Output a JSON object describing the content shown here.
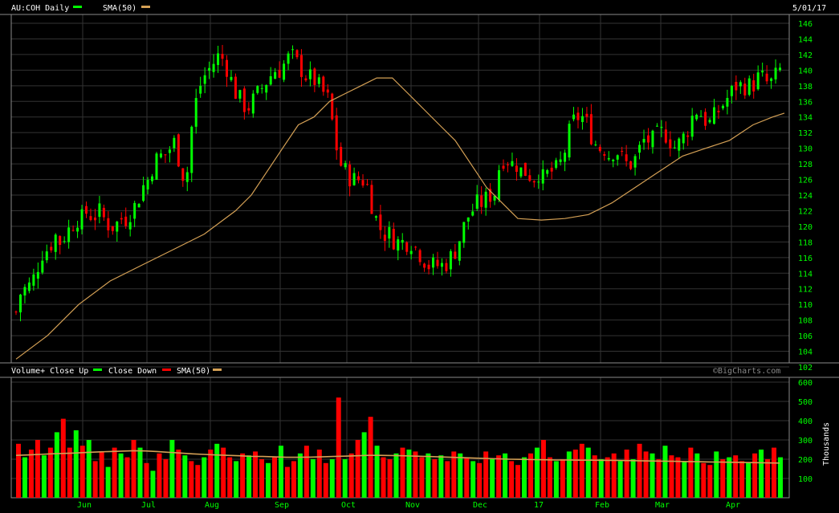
{
  "header": {
    "symbol_label": "AU:COH Daily",
    "sma_label": "SMA(50)",
    "date": "5/01/17"
  },
  "volume_header": {
    "volume_label": "Volume+ Close Up",
    "close_down_label": "Close Down",
    "sma_label": "SMA(50)",
    "watermark": "©BigCharts.com",
    "unit_label": "Thousands"
  },
  "colors": {
    "up": "#00ff00",
    "down": "#ff0000",
    "sma": "#d4a055",
    "grid": "#8a8a8a",
    "text": "#ffffff",
    "background": "#000000"
  },
  "chart_data": [
    {
      "type": "candlestick",
      "title": "AU:COH Daily",
      "x_tick_labels": [
        "Jun",
        "Jul",
        "Aug",
        "Sep",
        "Oct",
        "Nov",
        "Dec",
        "17",
        "Feb",
        "Mar",
        "Apr"
      ],
      "y_tick_labels": [
        102,
        104,
        106,
        108,
        110,
        112,
        114,
        116,
        118,
        120,
        122,
        124,
        126,
        128,
        130,
        132,
        134,
        136,
        138,
        140,
        142,
        144,
        146
      ],
      "ylim": [
        102,
        146
      ],
      "grid": true,
      "legend": "top-left",
      "series": [
        {
          "name": "AU:COH Daily",
          "close_path": [
            [
              0,
              109
            ],
            [
              5,
              112
            ],
            [
              10,
              112
            ],
            [
              15,
              113
            ],
            [
              20,
              115
            ],
            [
              25,
              117
            ],
            [
              30,
              117
            ],
            [
              35,
              119
            ],
            [
              40,
              118
            ],
            [
              45,
              119
            ],
            [
              50,
              120
            ],
            [
              55,
              121
            ],
            [
              60,
              121
            ],
            [
              65,
              122
            ],
            [
              70,
              121
            ],
            [
              75,
              122
            ],
            [
              80,
              121
            ],
            [
              85,
              120
            ],
            [
              90,
              120
            ],
            [
              95,
              121
            ],
            [
              100,
              121
            ],
            [
              105,
              122
            ],
            [
              110,
              123
            ],
            [
              115,
              125
            ],
            [
              120,
              126
            ],
            [
              125,
              128
            ],
            [
              130,
              129
            ],
            [
              135,
              129
            ],
            [
              140,
              130
            ],
            [
              145,
              131
            ],
            [
              150,
              127
            ],
            [
              155,
              126
            ],
            [
              160,
              133
            ],
            [
              165,
              137
            ],
            [
              170,
              139
            ],
            [
              175,
              140
            ],
            [
              180,
              141
            ],
            [
              185,
              142
            ],
            [
              190,
              141
            ],
            [
              195,
              139
            ],
            [
              200,
              137
            ],
            [
              205,
              136
            ],
            [
              210,
              135
            ],
            [
              215,
              136
            ],
            [
              220,
              137
            ],
            [
              225,
              138
            ],
            [
              230,
              139
            ],
            [
              235,
              140
            ],
            [
              240,
              140
            ],
            [
              245,
              141
            ],
            [
              250,
              142
            ],
            [
              255,
              141
            ],
            [
              260,
              140
            ],
            [
              265,
              139
            ],
            [
              270,
              139
            ],
            [
              275,
              138
            ],
            [
              280,
              137
            ],
            [
              285,
              136
            ],
            [
              290,
              131
            ],
            [
              295,
              128
            ],
            [
              300,
              127
            ],
            [
              305,
              126
            ],
            [
              310,
              126
            ],
            [
              315,
              126
            ],
            [
              320,
              125
            ],
            [
              325,
              122
            ],
            [
              330,
              120
            ],
            [
              335,
              119
            ],
            [
              340,
              119
            ],
            [
              345,
              118
            ],
            [
              350,
              118
            ],
            [
              355,
              118
            ],
            [
              360,
              118
            ],
            [
              365,
              117
            ],
            [
              370,
              116
            ],
            [
              375,
              115
            ],
            [
              380,
              115
            ],
            [
              385,
              115
            ],
            [
              390,
              115
            ],
            [
              395,
              116
            ],
            [
              400,
              117
            ],
            [
              405,
              119
            ],
            [
              410,
              121
            ],
            [
              415,
              122
            ],
            [
              420,
              123
            ],
            [
              425,
              123
            ],
            [
              430,
              124
            ],
            [
              435,
              124
            ],
            [
              440,
              128
            ],
            [
              445,
              129
            ],
            [
              450,
              128
            ],
            [
              455,
              128
            ],
            [
              460,
              127
            ],
            [
              465,
              127
            ],
            [
              470,
              126
            ],
            [
              475,
              127
            ],
            [
              480,
              126
            ],
            [
              485,
              127
            ],
            [
              490,
              127
            ],
            [
              495,
              128
            ],
            [
              500,
              130
            ],
            [
              505,
              133
            ],
            [
              510,
              134
            ],
            [
              515,
              134
            ],
            [
              520,
              133
            ],
            [
              525,
              131
            ],
            [
              530,
              130
            ],
            [
              535,
              130
            ],
            [
              540,
              129
            ],
            [
              545,
              130
            ],
            [
              550,
              129
            ],
            [
              555,
              128
            ],
            [
              560,
              128
            ],
            [
              565,
              129
            ],
            [
              570,
              131
            ],
            [
              575,
              131
            ],
            [
              580,
              131
            ],
            [
              585,
              132
            ],
            [
              590,
              132
            ],
            [
              595,
              131
            ],
            [
              600,
              130
            ],
            [
              605,
              131
            ],
            [
              610,
              132
            ],
            [
              615,
              134
            ],
            [
              620,
              135
            ],
            [
              625,
              134
            ],
            [
              630,
              133
            ],
            [
              635,
              134
            ],
            [
              640,
              135
            ],
            [
              645,
              136
            ],
            [
              650,
              137
            ],
            [
              655,
              138
            ],
            [
              660,
              138
            ],
            [
              665,
              138
            ],
            [
              670,
              138
            ],
            [
              675,
              139
            ],
            [
              680,
              139
            ],
            [
              685,
              138
            ],
            [
              690,
              139
            ],
            [
              695,
              140
            ]
          ]
        },
        {
          "name": "SMA(50)",
          "values_path": [
            [
              0,
              103
            ],
            [
              40,
              106
            ],
            [
              80,
              110
            ],
            [
              120,
              113
            ],
            [
              160,
              115
            ],
            [
              200,
              117
            ],
            [
              240,
              119
            ],
            [
              280,
              122
            ],
            [
              300,
              124
            ],
            [
              320,
              127
            ],
            [
              340,
              130
            ],
            [
              360,
              133
            ],
            [
              380,
              134
            ],
            [
              400,
              136
            ],
            [
              420,
              137
            ],
            [
              440,
              138
            ],
            [
              460,
              139
            ],
            [
              480,
              139
            ],
            [
              500,
              137
            ],
            [
              520,
              135
            ],
            [
              540,
              133
            ],
            [
              560,
              131
            ],
            [
              580,
              128
            ],
            [
              600,
              125
            ],
            [
              620,
              123
            ],
            [
              640,
              121
            ],
            [
              670,
              120.8
            ],
            [
              700,
              121
            ],
            [
              730,
              121.5
            ],
            [
              760,
              123
            ],
            [
              790,
              125
            ],
            [
              820,
              127
            ],
            [
              850,
              129
            ],
            [
              880,
              130
            ],
            [
              910,
              131
            ],
            [
              940,
              133
            ],
            [
              965,
              134
            ],
            [
              980,
              134.5
            ]
          ]
        }
      ]
    },
    {
      "type": "bar",
      "title": "Volume+ Close Up",
      "yunit": "Thousands",
      "y_tick_labels": [
        100,
        200,
        300,
        400,
        500,
        600
      ],
      "ylim": [
        0,
        600
      ],
      "grid": true,
      "legend": "top-left",
      "series": [
        {
          "name": "Volume+ Close Up",
          "values": [
            280,
            210,
            250,
            300,
            220,
            260,
            340,
            410,
            260,
            350,
            270,
            300,
            190,
            240,
            160,
            260,
            230,
            210,
            300,
            260,
            180,
            140,
            230,
            200,
            300,
            250,
            220,
            190,
            170,
            210,
            250,
            280,
            260,
            210,
            190,
            230,
            220,
            240,
            200,
            180,
            210,
            270,
            160,
            190,
            230,
            270,
            200,
            250,
            180,
            200,
            520,
            200,
            230,
            300,
            340,
            420,
            270,
            210,
            200,
            230,
            260,
            250,
            240,
            210,
            230,
            200,
            220,
            190,
            240,
            230,
            210,
            190,
            180,
            240,
            200,
            220,
            230,
            190,
            170,
            210,
            230,
            260,
            300,
            210,
            190,
            200,
            240,
            250,
            280,
            260,
            220,
            200,
            210,
            230,
            190,
            250,
            200,
            280,
            240,
            230,
            200,
            270,
            220,
            210,
            190,
            260,
            230,
            180,
            170,
            240,
            200,
            210,
            220,
            190,
            180,
            230,
            250,
            200,
            260,
            210
          ]
        },
        {
          "name": "Close Down",
          "values": []
        },
        {
          "name": "SMA(50)",
          "values": [
            220,
            222,
            225,
            228,
            230,
            232,
            235,
            238,
            240,
            242,
            244,
            243,
            240,
            236,
            232,
            228,
            225,
            222,
            220,
            218,
            215,
            214,
            212,
            210,
            210,
            211,
            212,
            214,
            216,
            218,
            220,
            220,
            219,
            218,
            216,
            214,
            212,
            210,
            208,
            206,
            204,
            202,
            200,
            199,
            198,
            197,
            196,
            196,
            195,
            195,
            194,
            194,
            193,
            192,
            191,
            190,
            189,
            188,
            187,
            186,
            185,
            184,
            183,
            182,
            181,
            180
          ]
        }
      ]
    }
  ]
}
